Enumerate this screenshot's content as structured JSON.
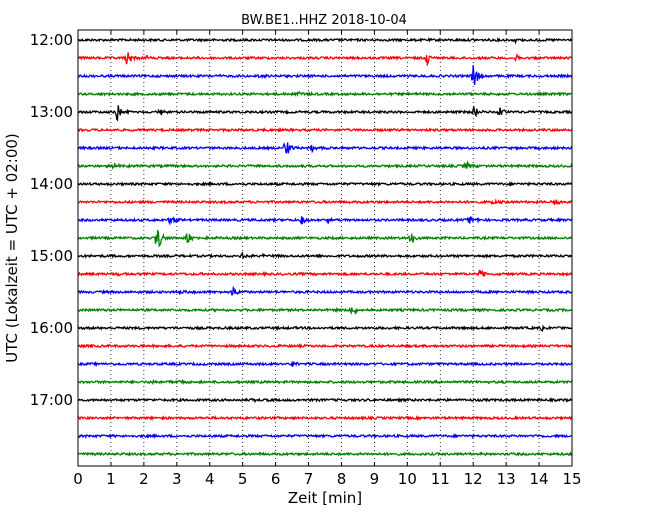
{
  "chart_data": {
    "type": "line",
    "title": "BW.BE1..HHZ 2018-10-04",
    "xlabel": "Zeit  [min]",
    "ylabel": "UTC (Lokalzeit = UTC + 02:00)",
    "xlim": [
      0,
      15
    ],
    "x_ticks": [
      0,
      1,
      2,
      3,
      4,
      5,
      6,
      7,
      8,
      9,
      10,
      11,
      12,
      13,
      14,
      15
    ],
    "y_ticks": [
      "12:00",
      "13:00",
      "14:00",
      "15:00",
      "16:00",
      "17:00"
    ],
    "grid": "vertical dotted",
    "colors": [
      "#000000",
      "#ff0000",
      "#0000ff",
      "#008000"
    ],
    "series": [
      {
        "start": "12:00",
        "color": "#000000",
        "events": [
          {
            "t": 13.3,
            "amp": 0.15
          }
        ]
      },
      {
        "start": "12:15",
        "color": "#ff0000",
        "events": [
          {
            "t": 1.5,
            "amp": 0.6
          },
          {
            "t": 2.1,
            "amp": 0.15
          },
          {
            "t": 10.6,
            "amp": 0.45
          },
          {
            "t": 13.3,
            "amp": 0.2
          }
        ]
      },
      {
        "start": "12:30",
        "color": "#0000ff",
        "events": [
          {
            "t": 5.5,
            "amp": 0.12
          },
          {
            "t": 12.0,
            "amp": 1.0
          }
        ]
      },
      {
        "start": "12:45",
        "color": "#008000",
        "events": [
          {
            "t": 6.7,
            "amp": 0.3
          }
        ]
      },
      {
        "start": "13:00",
        "color": "#000000",
        "events": [
          {
            "t": 1.2,
            "amp": 0.75
          },
          {
            "t": 2.5,
            "amp": 0.25
          },
          {
            "t": 12.0,
            "amp": 0.45
          },
          {
            "t": 12.8,
            "amp": 0.45
          }
        ]
      },
      {
        "start": "13:15",
        "color": "#ff0000",
        "events": []
      },
      {
        "start": "13:30",
        "color": "#0000ff",
        "events": [
          {
            "t": 6.3,
            "amp": 0.8
          },
          {
            "t": 7.1,
            "amp": 0.3
          }
        ]
      },
      {
        "start": "13:45",
        "color": "#008000",
        "events": [
          {
            "t": 1.1,
            "amp": 0.2
          },
          {
            "t": 11.8,
            "amp": 0.3
          }
        ]
      },
      {
        "start": "14:00",
        "color": "#000000",
        "events": []
      },
      {
        "start": "14:15",
        "color": "#ff0000",
        "events": [
          {
            "t": 12.6,
            "amp": 0.2
          },
          {
            "t": 14.5,
            "amp": 0.3
          }
        ]
      },
      {
        "start": "14:30",
        "color": "#0000ff",
        "events": [
          {
            "t": 2.8,
            "amp": 0.35
          },
          {
            "t": 6.8,
            "amp": 0.55
          },
          {
            "t": 7.5,
            "amp": 0.3
          },
          {
            "t": 11.9,
            "amp": 0.35
          }
        ]
      },
      {
        "start": "14:45",
        "color": "#008000",
        "events": [
          {
            "t": 2.4,
            "amp": 1.0
          },
          {
            "t": 3.3,
            "amp": 0.5
          },
          {
            "t": 10.1,
            "amp": 0.55
          }
        ]
      },
      {
        "start": "15:00",
        "color": "#000000",
        "events": [
          {
            "t": 5.0,
            "amp": 0.3
          },
          {
            "t": 5.6,
            "amp": 0.15
          }
        ]
      },
      {
        "start": "15:15",
        "color": "#ff0000",
        "events": [
          {
            "t": 1.2,
            "amp": 0.15
          },
          {
            "t": 12.2,
            "amp": 0.3
          }
        ]
      },
      {
        "start": "15:30",
        "color": "#0000ff",
        "events": [
          {
            "t": 3.1,
            "amp": 0.25
          },
          {
            "t": 4.7,
            "amp": 0.4
          }
        ]
      },
      {
        "start": "15:45",
        "color": "#008000",
        "events": [
          {
            "t": 8.3,
            "amp": 0.4
          }
        ]
      },
      {
        "start": "16:00",
        "color": "#000000",
        "events": [
          {
            "t": 14.1,
            "amp": 0.15
          }
        ]
      },
      {
        "start": "16:15",
        "color": "#ff0000",
        "events": []
      },
      {
        "start": "16:30",
        "color": "#0000ff",
        "events": [
          {
            "t": 6.5,
            "amp": 0.35
          }
        ]
      },
      {
        "start": "16:45",
        "color": "#008000",
        "events": [
          {
            "t": 2.3,
            "amp": 0.25
          },
          {
            "t": 3.0,
            "amp": 0.2
          }
        ]
      },
      {
        "start": "17:00",
        "color": "#000000",
        "events": [
          {
            "t": 5.3,
            "amp": 0.1
          }
        ]
      },
      {
        "start": "17:15",
        "color": "#ff0000",
        "events": []
      },
      {
        "start": "17:30",
        "color": "#0000ff",
        "events": [
          {
            "t": 13.9,
            "amp": 0.1
          }
        ]
      },
      {
        "start": "17:45",
        "color": "#008000",
        "events": [
          {
            "t": 12.3,
            "amp": 0.12
          }
        ]
      }
    ]
  }
}
